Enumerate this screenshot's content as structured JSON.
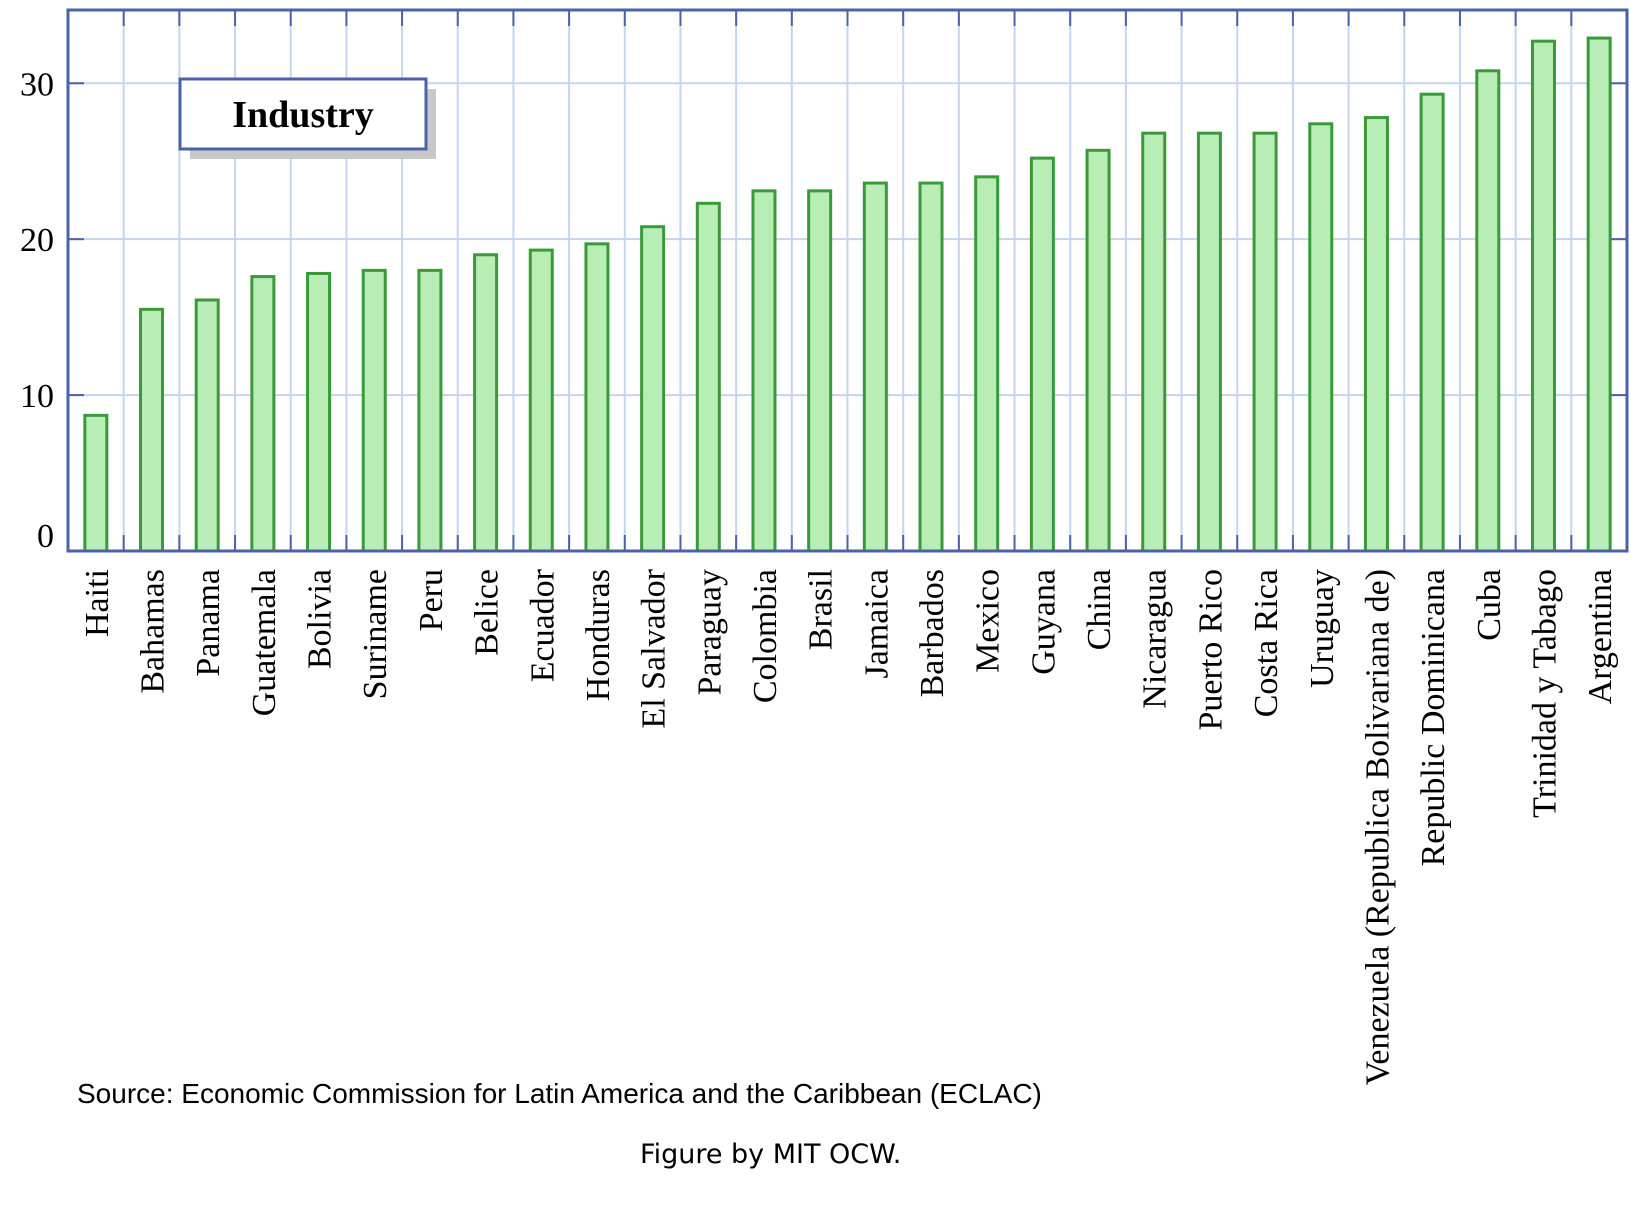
{
  "chart_data": {
    "type": "bar",
    "title": "Industry",
    "xlabel": "",
    "ylabel": "",
    "ylim": [
      0,
      34.7
    ],
    "yticks": [
      0,
      10,
      20,
      30
    ],
    "grid": true,
    "legend": "top-left",
    "colors": {
      "bar_fill": "#b8eeb5",
      "bar_stroke": "#3a9a3a",
      "grid": "#c5d5ef",
      "axis": "#4a63a8",
      "legend_border": "#4a63a8",
      "legend_shadow": "#c8c8c8"
    },
    "categories": [
      "Haiti",
      "Bahamas",
      "Panama",
      "Guatemala",
      "Bolivia",
      "Suriname",
      "Peru",
      "Belice",
      "Ecuador",
      "Honduras",
      "El Salvador",
      "Paraguay",
      "Colombia",
      "Brasil",
      "Jamaica",
      "Barbados",
      "Mexico",
      "Guyana",
      "China",
      "Nicaragua",
      "Puerto Rico",
      "Costa Rica",
      "Uruguay",
      "Venezuela (Republica Bolivariana de)",
      "Republic Dominicana",
      "Cuba",
      "Trinidad y Tabago",
      "Argentina"
    ],
    "values": [
      8.7,
      15.5,
      16.1,
      17.6,
      17.8,
      18.0,
      18.0,
      19.0,
      19.3,
      19.7,
      20.8,
      22.3,
      23.1,
      23.1,
      23.6,
      23.6,
      24.0,
      25.2,
      25.7,
      26.8,
      26.8,
      26.8,
      27.4,
      27.8,
      29.3,
      30.8,
      32.7,
      32.9
    ]
  },
  "footer": {
    "source": "Source: Economic Commission for Latin America and the Caribbean (ECLAC)",
    "credit": "Figure by MIT OCW."
  }
}
